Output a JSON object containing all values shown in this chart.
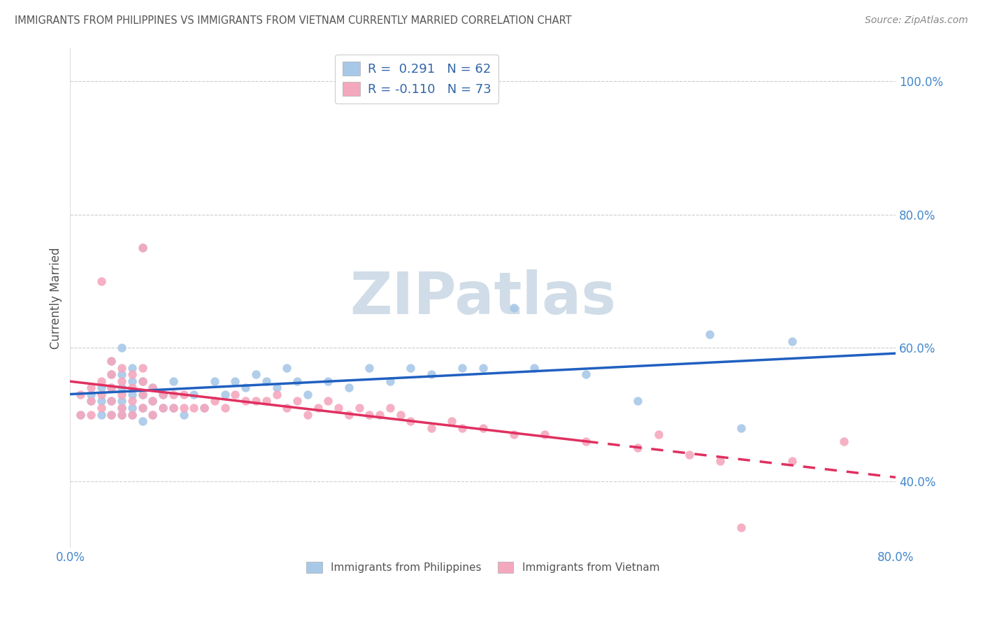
{
  "title": "IMMIGRANTS FROM PHILIPPINES VS IMMIGRANTS FROM VIETNAM CURRENTLY MARRIED CORRELATION CHART",
  "source": "Source: ZipAtlas.com",
  "ylabel": "Currently Married",
  "legend_entry1": "R =  0.291   N = 62",
  "legend_entry2": "R = -0.110   N = 73",
  "legend_label1": "Immigrants from Philippines",
  "legend_label2": "Immigrants from Vietnam",
  "R1": 0.291,
  "N1": 62,
  "R2": -0.11,
  "N2": 73,
  "color1": "#a8c8e8",
  "color2": "#f4a8be",
  "line_color1": "#2060c0",
  "line_color2": "#e0306080",
  "line_color2_solid": "#e03060",
  "background": "#ffffff",
  "grid_color": "#cccccc",
  "xlim": [
    0.0,
    0.8
  ],
  "ylim": [
    0.3,
    1.05
  ],
  "xticks": [
    0.0,
    0.8
  ],
  "yticks": [
    0.4,
    0.6,
    0.8,
    1.0
  ],
  "scatter1_x": [
    0.01,
    0.02,
    0.02,
    0.03,
    0.03,
    0.03,
    0.04,
    0.04,
    0.04,
    0.04,
    0.04,
    0.05,
    0.05,
    0.05,
    0.05,
    0.05,
    0.05,
    0.06,
    0.06,
    0.06,
    0.06,
    0.06,
    0.07,
    0.07,
    0.07,
    0.07,
    0.07,
    0.08,
    0.08,
    0.08,
    0.09,
    0.09,
    0.1,
    0.1,
    0.11,
    0.12,
    0.13,
    0.14,
    0.15,
    0.16,
    0.17,
    0.18,
    0.19,
    0.2,
    0.21,
    0.22,
    0.23,
    0.25,
    0.27,
    0.29,
    0.31,
    0.33,
    0.35,
    0.38,
    0.4,
    0.43,
    0.45,
    0.5,
    0.55,
    0.62,
    0.65,
    0.7
  ],
  "scatter1_y": [
    0.5,
    0.52,
    0.53,
    0.5,
    0.52,
    0.54,
    0.5,
    0.52,
    0.54,
    0.56,
    0.58,
    0.5,
    0.51,
    0.52,
    0.54,
    0.56,
    0.6,
    0.5,
    0.51,
    0.53,
    0.55,
    0.57,
    0.49,
    0.51,
    0.53,
    0.55,
    0.75,
    0.5,
    0.52,
    0.54,
    0.51,
    0.53,
    0.51,
    0.55,
    0.5,
    0.53,
    0.51,
    0.55,
    0.53,
    0.55,
    0.54,
    0.56,
    0.55,
    0.54,
    0.57,
    0.55,
    0.53,
    0.55,
    0.54,
    0.57,
    0.55,
    0.57,
    0.56,
    0.57,
    0.57,
    0.66,
    0.57,
    0.56,
    0.52,
    0.62,
    0.48,
    0.61
  ],
  "scatter2_x": [
    0.01,
    0.01,
    0.02,
    0.02,
    0.02,
    0.03,
    0.03,
    0.03,
    0.03,
    0.04,
    0.04,
    0.04,
    0.04,
    0.04,
    0.05,
    0.05,
    0.05,
    0.05,
    0.05,
    0.06,
    0.06,
    0.06,
    0.06,
    0.07,
    0.07,
    0.07,
    0.07,
    0.07,
    0.08,
    0.08,
    0.08,
    0.09,
    0.09,
    0.1,
    0.1,
    0.11,
    0.11,
    0.12,
    0.13,
    0.14,
    0.15,
    0.16,
    0.17,
    0.18,
    0.19,
    0.2,
    0.21,
    0.22,
    0.23,
    0.24,
    0.25,
    0.26,
    0.27,
    0.28,
    0.29,
    0.3,
    0.31,
    0.32,
    0.33,
    0.35,
    0.37,
    0.38,
    0.4,
    0.43,
    0.46,
    0.5,
    0.55,
    0.57,
    0.6,
    0.63,
    0.65,
    0.7,
    0.75
  ],
  "scatter2_y": [
    0.5,
    0.53,
    0.5,
    0.52,
    0.54,
    0.51,
    0.53,
    0.55,
    0.7,
    0.5,
    0.52,
    0.54,
    0.56,
    0.58,
    0.5,
    0.51,
    0.53,
    0.55,
    0.57,
    0.5,
    0.52,
    0.54,
    0.56,
    0.51,
    0.53,
    0.55,
    0.57,
    0.75,
    0.5,
    0.52,
    0.54,
    0.51,
    0.53,
    0.51,
    0.53,
    0.51,
    0.53,
    0.51,
    0.51,
    0.52,
    0.51,
    0.53,
    0.52,
    0.52,
    0.52,
    0.53,
    0.51,
    0.52,
    0.5,
    0.51,
    0.52,
    0.51,
    0.5,
    0.51,
    0.5,
    0.5,
    0.51,
    0.5,
    0.49,
    0.48,
    0.49,
    0.48,
    0.48,
    0.47,
    0.47,
    0.46,
    0.45,
    0.47,
    0.44,
    0.43,
    0.33,
    0.43,
    0.46
  ],
  "dashed_line_start_x": 0.5,
  "watermark_text": "ZIPatlas",
  "watermark_fontsize": 60,
  "watermark_color": "#d0dde8"
}
